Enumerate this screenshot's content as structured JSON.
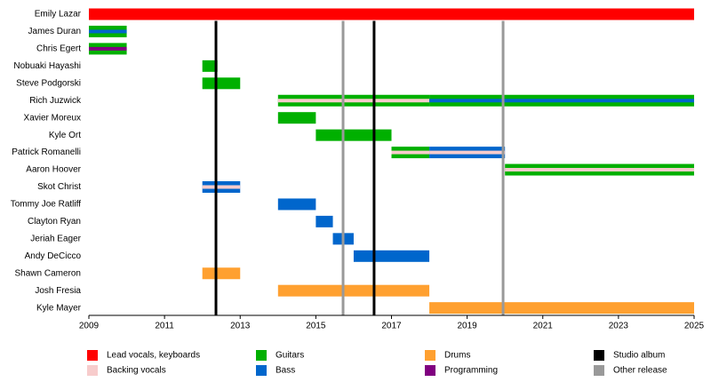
{
  "chart_data": {
    "type": "timeline",
    "xlim": [
      2009,
      2025
    ],
    "xticks": [
      2009,
      2011,
      2013,
      2015,
      2017,
      2019,
      2021,
      2023,
      2025
    ],
    "roles": [
      {
        "name": "Lead vocals, keyboards",
        "color": "#ff0000"
      },
      {
        "name": "Backing vocals",
        "color": "#f7cccc"
      },
      {
        "name": "Guitars",
        "color": "#00b000"
      },
      {
        "name": "Bass",
        "color": "#0066cc"
      },
      {
        "name": "Drums",
        "color": "#ffa030"
      },
      {
        "name": "Programming",
        "color": "#800080"
      }
    ],
    "events": [
      {
        "name": "Studio album",
        "color": "#000000",
        "values": [
          2012.36,
          2016.54
        ]
      },
      {
        "name": "Other release",
        "color": "#999999",
        "values": [
          2015.72,
          2019.95
        ]
      }
    ],
    "members": [
      {
        "name": "Emily Lazar",
        "segments": [
          {
            "start": 2009,
            "end": 2025,
            "role": 0
          }
        ]
      },
      {
        "name": "James Duran",
        "segments": [
          {
            "start": 2009,
            "end": 2010,
            "role": 2,
            "stripe": 3
          }
        ]
      },
      {
        "name": "Chris Egert",
        "segments": [
          {
            "start": 2009,
            "end": 2010,
            "role": 2,
            "stripe": 5
          }
        ]
      },
      {
        "name": "Nobuaki Hayashi",
        "segments": [
          {
            "start": 2012,
            "end": 2012.4,
            "role": 2
          }
        ]
      },
      {
        "name": "Steve Podgorski",
        "segments": [
          {
            "start": 2012,
            "end": 2013,
            "role": 2
          }
        ]
      },
      {
        "name": "Rich Juzwick",
        "segments": [
          {
            "start": 2014,
            "end": 2018,
            "role": 2,
            "stripe": 1
          },
          {
            "start": 2018,
            "end": 2025,
            "role": 2,
            "stripe": 3
          }
        ]
      },
      {
        "name": "Xavier Moreux",
        "segments": [
          {
            "start": 2014,
            "end": 2015,
            "role": 2
          }
        ]
      },
      {
        "name": "Kyle Ort",
        "segments": [
          {
            "start": 2015,
            "end": 2017,
            "role": 2
          }
        ]
      },
      {
        "name": "Patrick Romanelli",
        "segments": [
          {
            "start": 2017,
            "end": 2018,
            "role": 2,
            "stripe": 1
          },
          {
            "start": 2018,
            "end": 2020,
            "role": 3,
            "stripe": 1
          }
        ]
      },
      {
        "name": "Aaron Hoover",
        "segments": [
          {
            "start": 2020,
            "end": 2025,
            "role": 2,
            "stripe": 1
          }
        ]
      },
      {
        "name": "Skot Christ",
        "segments": [
          {
            "start": 2012,
            "end": 2013,
            "role": 3,
            "stripe": 1
          }
        ]
      },
      {
        "name": "Tommy Joe Ratliff",
        "segments": [
          {
            "start": 2014,
            "end": 2015,
            "role": 3
          }
        ]
      },
      {
        "name": "Clayton Ryan",
        "segments": [
          {
            "start": 2015,
            "end": 2015.45,
            "role": 3
          }
        ]
      },
      {
        "name": "Jeriah Eager",
        "segments": [
          {
            "start": 2015.45,
            "end": 2016,
            "role": 3
          }
        ]
      },
      {
        "name": "Andy DeCicco",
        "segments": [
          {
            "start": 2016,
            "end": 2018,
            "role": 3
          }
        ]
      },
      {
        "name": "Shawn Cameron",
        "segments": [
          {
            "start": 2012,
            "end": 2013,
            "role": 4
          }
        ]
      },
      {
        "name": "Josh Fresia",
        "segments": [
          {
            "start": 2014,
            "end": 2018,
            "role": 4
          }
        ]
      },
      {
        "name": "Kyle Mayer",
        "segments": [
          {
            "start": 2018,
            "end": 2025,
            "role": 4
          }
        ]
      }
    ]
  }
}
